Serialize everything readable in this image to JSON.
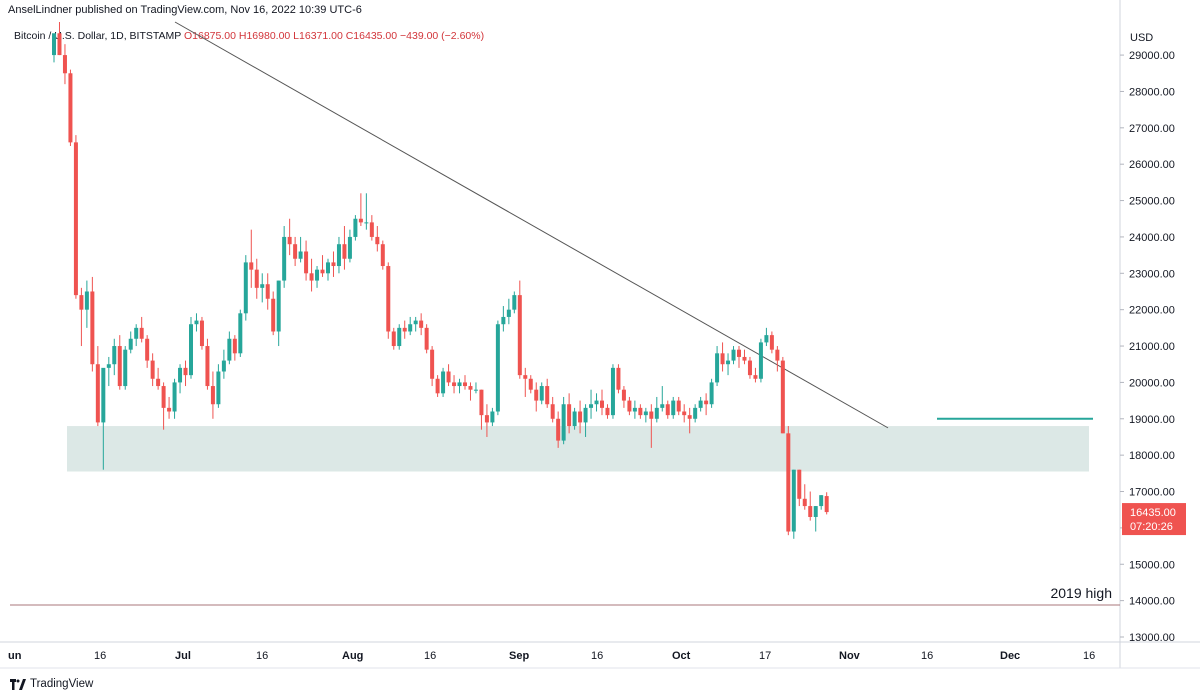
{
  "publisher": "AnselLindner published on TradingView.com, Nov 16, 2022 10:39 UTC-6",
  "symbol": {
    "name": "Bitcoin / U.S. Dollar, 1D, BITSTAMP",
    "ohlc": "O16875.00  H16980.00  L16371.00  C16435.00  −439.00 (−2.60%)"
  },
  "footer": {
    "brand": "TradingView"
  },
  "colors": {
    "up": "#26a69a",
    "down": "#ef5350",
    "zone": "#dce8e6",
    "green_line": "#26a69a",
    "trend_line": "#555555",
    "high_line": "#a9777b"
  },
  "price_tag": {
    "value": "16435.00",
    "countdown": "07:20:26"
  },
  "annotations": {
    "high_label": "2019 high"
  },
  "chart_data": {
    "type": "candlestick",
    "currency": "USD",
    "y_ticks": [
      "13000.00",
      "14000.00",
      "15000.00",
      "16000.00",
      "17000.00",
      "18000.00",
      "19000.00",
      "20000.00",
      "21000.00",
      "22000.00",
      "23000.00",
      "24000.00",
      "25000.00",
      "26000.00",
      "27000.00",
      "28000.00",
      "29000.00"
    ],
    "ylim": [
      12700,
      30300
    ],
    "x_ticks": [
      "un",
      "16",
      "Jul",
      "16",
      "Aug",
      "16",
      "Sep",
      "16",
      "Oct",
      "17",
      "Nov",
      "16",
      "Dec",
      "16"
    ],
    "support_zone": [
      17550,
      18800
    ],
    "level_line": 19000,
    "high_2019": 13880,
    "trend_line": {
      "from": [
        0,
        30500
      ],
      "to": [
        142,
        18750
      ]
    },
    "candles": [
      [
        20,
        24,
        19.5,
        22.5
      ],
      [
        22.5,
        23,
        22.5,
        23
      ],
      [
        23,
        23.8,
        22.4,
        23
      ],
      [
        23,
        23.6,
        22.7,
        23.2
      ],
      [
        23.2,
        23.5,
        22.8,
        23.0
      ],
      [
        23.0,
        23.0,
        20.3,
        23.0
      ],
      [
        29,
        29.5,
        28.8,
        29.6
      ],
      [
        29.6,
        30.0,
        29.0,
        29.0
      ],
      [
        29.0,
        29.3,
        28.2,
        28.5
      ],
      [
        28.5,
        28.6,
        26.5,
        26.6
      ],
      [
        26.6,
        26.8,
        22.3,
        22.4
      ],
      [
        22.4,
        22.6,
        21.0,
        22.0
      ],
      [
        22.0,
        22.8,
        21.5,
        22.5
      ],
      [
        22.5,
        22.9,
        20.3,
        20.5
      ],
      [
        20.5,
        21.0,
        18.8,
        18.9
      ],
      [
        18.9,
        19.6,
        17.6,
        20.4
      ],
      [
        20.4,
        20.7,
        19.9,
        20.5
      ],
      [
        20.5,
        21.2,
        20.2,
        21.0
      ],
      [
        21.0,
        21.3,
        19.8,
        19.9
      ],
      [
        19.9,
        21.0,
        19.8,
        20.9
      ],
      [
        20.9,
        21.4,
        20.8,
        21.2
      ],
      [
        21.2,
        21.6,
        21.0,
        21.5
      ],
      [
        21.5,
        21.8,
        21.1,
        21.2
      ],
      [
        21.2,
        21.3,
        20.4,
        20.6
      ],
      [
        20.6,
        20.8,
        19.9,
        20.1
      ],
      [
        20.1,
        20.4,
        19.8,
        19.9
      ],
      [
        19.9,
        20.0,
        18.7,
        19.3
      ],
      [
        19.3,
        19.6,
        19.0,
        19.2
      ],
      [
        19.2,
        20.1,
        19.0,
        20.0
      ],
      [
        20.0,
        20.5,
        19.7,
        20.4
      ],
      [
        20.4,
        20.6,
        19.9,
        20.2
      ],
      [
        20.2,
        21.8,
        20.1,
        21.6
      ],
      [
        21.6,
        21.9,
        21.4,
        21.7
      ],
      [
        21.7,
        21.8,
        20.9,
        21.0
      ],
      [
        21.0,
        21.2,
        19.8,
        19.9
      ],
      [
        19.9,
        20.3,
        19.0,
        19.4
      ],
      [
        19.4,
        20.5,
        19.3,
        20.3
      ],
      [
        20.3,
        20.9,
        20.1,
        20.6
      ],
      [
        20.6,
        21.4,
        20.5,
        21.2
      ],
      [
        21.2,
        21.3,
        20.6,
        20.8
      ],
      [
        20.8,
        22.0,
        20.7,
        21.9
      ],
      [
        21.9,
        23.5,
        21.7,
        23.3
      ],
      [
        23.3,
        24.2,
        22.6,
        23.1
      ],
      [
        23.1,
        23.4,
        22.3,
        22.6
      ],
      [
        22.6,
        23.0,
        22.2,
        22.7
      ],
      [
        22.7,
        23.0,
        22.0,
        22.3
      ],
      [
        22.3,
        22.5,
        21.3,
        21.4
      ],
      [
        21.4,
        22.8,
        21.0,
        22.8
      ],
      [
        22.8,
        24.3,
        22.6,
        24.0
      ],
      [
        24.0,
        24.5,
        23.5,
        23.8
      ],
      [
        23.8,
        24.0,
        23.2,
        23.4
      ],
      [
        23.4,
        24.0,
        23.3,
        23.6
      ],
      [
        23.6,
        23.9,
        22.8,
        23.0
      ],
      [
        23.0,
        23.4,
        22.5,
        22.8
      ],
      [
        22.8,
        23.2,
        22.6,
        23.1
      ],
      [
        23.1,
        23.5,
        22.9,
        23.0
      ],
      [
        23.0,
        23.4,
        22.8,
        23.3
      ],
      [
        23.3,
        23.6,
        22.9,
        23.2
      ],
      [
        23.2,
        24.0,
        23.0,
        23.8
      ],
      [
        23.8,
        24.3,
        23.1,
        23.4
      ],
      [
        23.4,
        24.2,
        23.3,
        24.0
      ],
      [
        24.0,
        24.6,
        23.9,
        24.5
      ],
      [
        24.5,
        25.2,
        24.3,
        24.4
      ],
      [
        24.4,
        25.2,
        24.2,
        24.4
      ],
      [
        24.4,
        24.6,
        23.9,
        24.0
      ],
      [
        24.0,
        24.3,
        23.6,
        23.8
      ],
      [
        23.8,
        23.9,
        23.1,
        23.2
      ],
      [
        23.2,
        23.3,
        21.2,
        21.4
      ],
      [
        21.4,
        21.5,
        20.9,
        21.0
      ],
      [
        21.0,
        21.6,
        20.9,
        21.5
      ],
      [
        21.5,
        21.7,
        21.2,
        21.4
      ],
      [
        21.4,
        21.8,
        21.3,
        21.6
      ],
      [
        21.6,
        21.8,
        21.4,
        21.7
      ],
      [
        21.7,
        21.9,
        21.3,
        21.5
      ],
      [
        21.5,
        21.6,
        20.8,
        20.9
      ],
      [
        20.9,
        21.0,
        19.9,
        20.1
      ],
      [
        20.1,
        20.2,
        19.6,
        19.7
      ],
      [
        19.7,
        20.4,
        19.6,
        20.3
      ],
      [
        20.3,
        20.5,
        19.9,
        20.0
      ],
      [
        20.0,
        20.2,
        19.7,
        19.9
      ],
      [
        19.9,
        20.1,
        19.7,
        20.0
      ],
      [
        20.0,
        20.2,
        19.8,
        19.9
      ],
      [
        19.9,
        20.0,
        19.5,
        19.8
      ],
      [
        19.8,
        20.0,
        19.7,
        19.8
      ],
      [
        19.8,
        19.8,
        18.7,
        19.1
      ],
      [
        19.1,
        19.4,
        18.5,
        18.9
      ],
      [
        18.9,
        19.3,
        18.8,
        19.2
      ],
      [
        19.2,
        21.7,
        19.1,
        21.6
      ],
      [
        21.6,
        22.1,
        21.4,
        21.8
      ],
      [
        21.8,
        22.3,
        21.6,
        22.0
      ],
      [
        22.0,
        22.5,
        21.9,
        22.4
      ],
      [
        22.4,
        22.8,
        20.1,
        20.2
      ],
      [
        20.2,
        20.4,
        19.6,
        20.1
      ],
      [
        20.1,
        20.2,
        19.7,
        19.8
      ],
      [
        19.8,
        20.0,
        19.2,
        19.5
      ],
      [
        19.5,
        20.0,
        19.4,
        19.9
      ],
      [
        19.9,
        20.1,
        19.3,
        19.4
      ],
      [
        19.4,
        19.6,
        18.9,
        19.0
      ],
      [
        19.0,
        19.2,
        18.2,
        18.4
      ],
      [
        18.4,
        19.6,
        18.3,
        19.4
      ],
      [
        19.4,
        19.7,
        18.6,
        18.8
      ],
      [
        18.8,
        19.3,
        18.7,
        19.2
      ],
      [
        19.2,
        19.5,
        18.6,
        18.9
      ],
      [
        18.9,
        19.4,
        18.5,
        19.3
      ],
      [
        19.3,
        19.8,
        19.0,
        19.4
      ],
      [
        19.4,
        19.7,
        19.2,
        19.5
      ],
      [
        19.5,
        19.8,
        19.1,
        19.3
      ],
      [
        19.3,
        19.4,
        19.0,
        19.1
      ],
      [
        19.1,
        20.5,
        19.0,
        20.4
      ],
      [
        20.4,
        20.5,
        19.7,
        19.8
      ],
      [
        19.8,
        19.9,
        19.3,
        19.5
      ],
      [
        19.5,
        19.6,
        19.1,
        19.2
      ],
      [
        19.2,
        19.5,
        19.0,
        19.3
      ],
      [
        19.3,
        19.4,
        19.0,
        19.1
      ],
      [
        19.1,
        19.3,
        18.9,
        19.2
      ],
      [
        19.2,
        19.4,
        18.2,
        19.0
      ],
      [
        19.0,
        19.6,
        18.9,
        19.3
      ],
      [
        19.3,
        19.9,
        19.2,
        19.4
      ],
      [
        19.4,
        19.5,
        19.0,
        19.1
      ],
      [
        19.1,
        19.6,
        19.0,
        19.5
      ],
      [
        19.5,
        19.6,
        19.1,
        19.2
      ],
      [
        19.2,
        19.4,
        18.9,
        19.1
      ],
      [
        19.1,
        19.3,
        18.6,
        19.0
      ],
      [
        19.0,
        19.4,
        18.9,
        19.3
      ],
      [
        19.3,
        19.6,
        19.2,
        19.5
      ],
      [
        19.5,
        19.7,
        19.1,
        19.4
      ],
      [
        19.4,
        20.1,
        19.3,
        20.0
      ],
      [
        20.0,
        21.0,
        19.9,
        20.8
      ],
      [
        20.8,
        21.1,
        20.3,
        20.5
      ],
      [
        20.5,
        20.8,
        20.2,
        20.6
      ],
      [
        20.6,
        21.0,
        20.5,
        20.9
      ],
      [
        20.9,
        21.0,
        20.4,
        20.7
      ],
      [
        20.7,
        20.9,
        20.5,
        20.6
      ],
      [
        20.6,
        20.7,
        20.1,
        20.2
      ],
      [
        20.2,
        20.4,
        20.0,
        20.1
      ],
      [
        20.1,
        21.2,
        20.0,
        21.1
      ],
      [
        21.1,
        21.5,
        21.0,
        21.3
      ],
      [
        21.3,
        21.4,
        20.8,
        20.9
      ],
      [
        20.9,
        21.0,
        20.3,
        20.6
      ],
      [
        20.6,
        20.7,
        18.6,
        18.6
      ],
      [
        18.6,
        18.8,
        15.8,
        15.9
      ],
      [
        15.9,
        17.6,
        15.7,
        17.6
      ],
      [
        17.6,
        17.6,
        16.6,
        16.8
      ],
      [
        16.8,
        17.2,
        16.5,
        16.6
      ],
      [
        16.6,
        17.0,
        16.2,
        16.3
      ],
      [
        16.3,
        16.6,
        15.9,
        16.6
      ],
      [
        16.6,
        16.9,
        16.5,
        16.9
      ],
      [
        16.875,
        16.98,
        16.371,
        16.435
      ]
    ]
  }
}
